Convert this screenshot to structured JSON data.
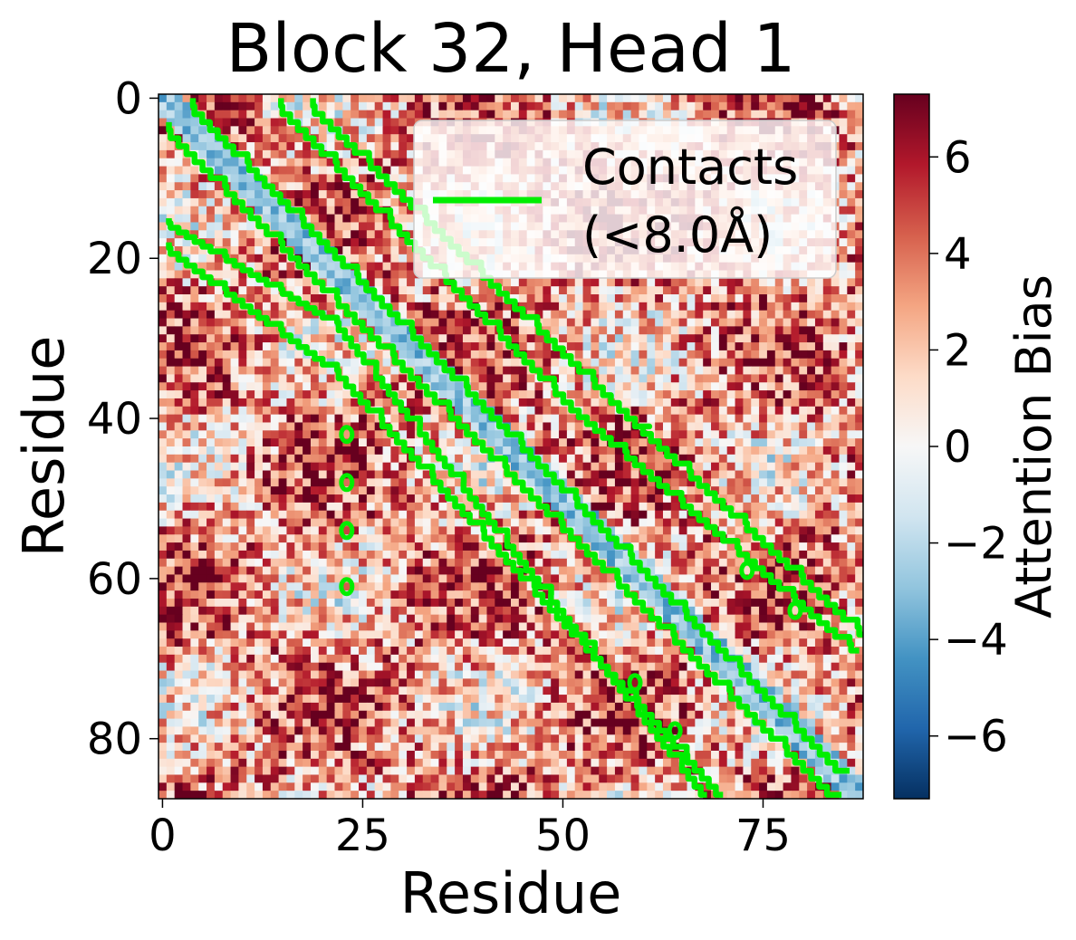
{
  "chart_data": {
    "type": "heatmap",
    "title": "Block 32, Head 1",
    "xlabel": "Residue",
    "ylabel": "Residue",
    "n_residues": 88,
    "xlim": [
      -0.5,
      87.5
    ],
    "ylim": [
      87.5,
      -0.5
    ],
    "x_ticks": [
      0,
      25,
      50,
      75
    ],
    "y_ticks": [
      0,
      20,
      40,
      60,
      80
    ],
    "x_tick_labels": [
      "0",
      "25",
      "50",
      "75"
    ],
    "y_tick_labels": [
      "0",
      "20",
      "40",
      "60",
      "80"
    ],
    "colormap": "RdBu_r",
    "colorbar": {
      "label": "Attention Bias",
      "vmin": -7.3,
      "vmax": 7.3,
      "ticks": [
        6,
        4,
        2,
        0,
        -2,
        -4,
        -6
      ],
      "tick_labels": [
        "6",
        "4",
        "2",
        "0",
        "−2",
        "−4",
        "−6"
      ]
    },
    "diagonal_band": {
      "value_near_diagonal": -3,
      "offsets": [
        -2,
        2
      ]
    },
    "background_value_range": [
      -1,
      7
    ],
    "contacts": {
      "threshold": "<8.0Å",
      "color": "#00ee00",
      "boundaries": [
        {
          "points": [
            [
              3,
              0
            ],
            [
              85,
              84
            ]
          ]
        },
        {
          "points": [
            [
              0,
              3
            ],
            [
              84,
              87
            ]
          ]
        },
        {
          "points": [
            [
              18,
              0
            ],
            [
              60,
              41
            ],
            [
              88,
              67
            ]
          ]
        },
        {
          "points": [
            [
              14,
              0
            ],
            [
              52,
              39
            ],
            [
              87,
              69
            ]
          ]
        },
        {
          "points": [
            [
              0,
              15
            ],
            [
              22,
              28
            ],
            [
              68,
              87
            ]
          ]
        },
        {
          "points": [
            [
              0,
              18
            ],
            [
              22,
              34
            ],
            [
              62,
              78
            ],
            [
              70,
              87
            ]
          ]
        }
      ],
      "islands": [
        [
          23,
          42
        ],
        [
          23,
          48
        ],
        [
          23,
          54
        ],
        [
          23,
          61
        ],
        [
          79,
          64
        ],
        [
          73,
          59
        ],
        [
          64,
          79
        ],
        [
          59,
          73
        ]
      ]
    },
    "legend": {
      "placement": "upper right",
      "entries": [
        "Contacts\n(<8.0Å)"
      ]
    }
  }
}
